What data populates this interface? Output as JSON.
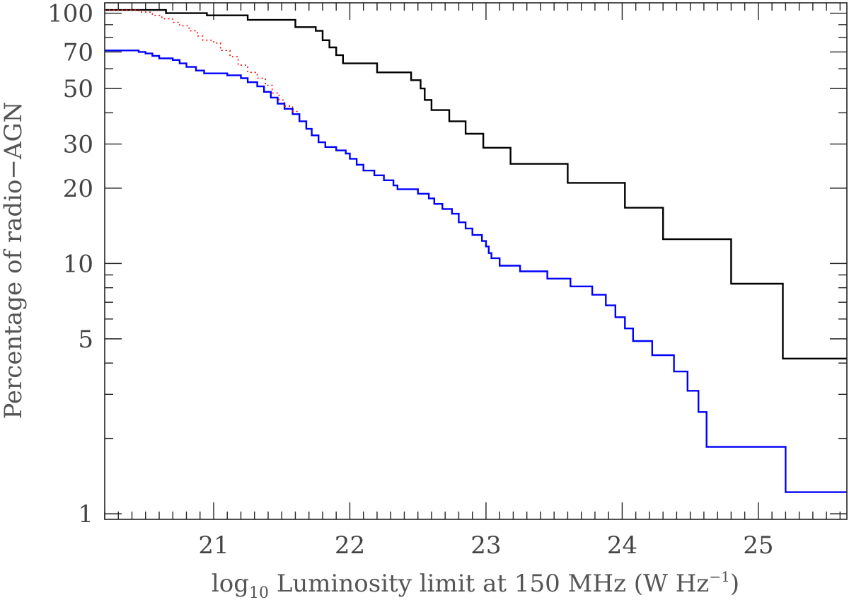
{
  "chart_data": {
    "type": "line",
    "step": true,
    "title": "",
    "xlabel": {
      "pre": "log",
      "sub": "10",
      "main": " Luminosity limit at 150 MHz (W Hz",
      "sup": "−1",
      "post": ")"
    },
    "ylabel": "Percentage of radio−AGN",
    "xlim": [
      20.2,
      25.65
    ],
    "ylim": [
      0.95,
      110
    ],
    "yscale": "log",
    "grid": false,
    "legend": "none",
    "x_ticks": [
      21,
      22,
      23,
      24,
      25
    ],
    "x_tick_labels": [
      "21",
      "22",
      "23",
      "24",
      "25"
    ],
    "y_ticks": [
      1,
      5,
      10,
      20,
      30,
      50,
      70,
      100
    ],
    "y_tick_labels": [
      "1",
      "5",
      "10",
      "20",
      "30",
      "50",
      "70",
      "100"
    ],
    "y_minor_ticks": [
      2,
      3,
      4,
      6,
      7,
      8,
      9,
      40,
      60,
      80,
      90
    ],
    "series": [
      {
        "color": "#000000",
        "style": "solid",
        "points": [
          [
            20.2,
            103
          ],
          [
            20.65,
            103
          ],
          [
            20.65,
            100
          ],
          [
            20.95,
            100
          ],
          [
            20.95,
            98
          ],
          [
            21.25,
            98
          ],
          [
            21.25,
            94
          ],
          [
            21.6,
            94
          ],
          [
            21.6,
            88
          ],
          [
            21.75,
            88
          ],
          [
            21.75,
            85
          ],
          [
            21.8,
            85
          ],
          [
            21.8,
            78
          ],
          [
            21.85,
            78
          ],
          [
            21.85,
            73
          ],
          [
            21.9,
            73
          ],
          [
            21.9,
            68
          ],
          [
            21.95,
            68
          ],
          [
            21.95,
            63
          ],
          [
            22.2,
            63
          ],
          [
            22.2,
            58
          ],
          [
            22.45,
            58
          ],
          [
            22.45,
            54
          ],
          [
            22.52,
            54
          ],
          [
            22.52,
            50
          ],
          [
            22.55,
            50
          ],
          [
            22.55,
            45
          ],
          [
            22.6,
            45
          ],
          [
            22.6,
            41
          ],
          [
            22.73,
            41
          ],
          [
            22.73,
            37
          ],
          [
            22.85,
            37
          ],
          [
            22.85,
            33
          ],
          [
            22.98,
            33
          ],
          [
            22.98,
            29
          ],
          [
            23.18,
            29
          ],
          [
            23.18,
            25
          ],
          [
            23.6,
            25
          ],
          [
            23.6,
            21
          ],
          [
            24.02,
            21
          ],
          [
            24.02,
            16.7
          ],
          [
            24.3,
            16.7
          ],
          [
            24.3,
            12.5
          ],
          [
            24.8,
            12.5
          ],
          [
            24.8,
            8.3
          ],
          [
            25.18,
            8.3
          ],
          [
            25.18,
            4.17
          ],
          [
            25.65,
            4.17
          ]
        ]
      },
      {
        "color": "#0000ff",
        "style": "solid",
        "points": [
          [
            20.2,
            71
          ],
          [
            20.45,
            71
          ],
          [
            20.45,
            70
          ],
          [
            20.5,
            70
          ],
          [
            20.5,
            69
          ],
          [
            20.55,
            69
          ],
          [
            20.55,
            67.5
          ],
          [
            20.6,
            67.5
          ],
          [
            20.6,
            66
          ],
          [
            20.7,
            66
          ],
          [
            20.7,
            65
          ],
          [
            20.75,
            65
          ],
          [
            20.75,
            63
          ],
          [
            20.8,
            63
          ],
          [
            20.8,
            61
          ],
          [
            20.87,
            61
          ],
          [
            20.87,
            59
          ],
          [
            20.93,
            59
          ],
          [
            20.93,
            57.5
          ],
          [
            21.1,
            57.5
          ],
          [
            21.1,
            56.5
          ],
          [
            21.2,
            56.5
          ],
          [
            21.2,
            55
          ],
          [
            21.25,
            55
          ],
          [
            21.25,
            53
          ],
          [
            21.32,
            53
          ],
          [
            21.32,
            51
          ],
          [
            21.37,
            51
          ],
          [
            21.37,
            48.5
          ],
          [
            21.42,
            48.5
          ],
          [
            21.42,
            46
          ],
          [
            21.47,
            46
          ],
          [
            21.47,
            43.5
          ],
          [
            21.52,
            43.5
          ],
          [
            21.52,
            41.5
          ],
          [
            21.58,
            41.5
          ],
          [
            21.58,
            39.5
          ],
          [
            21.63,
            39.5
          ],
          [
            21.63,
            37
          ],
          [
            21.68,
            37
          ],
          [
            21.68,
            34.5
          ],
          [
            21.72,
            34.5
          ],
          [
            21.72,
            32.5
          ],
          [
            21.77,
            32.5
          ],
          [
            21.77,
            30.5
          ],
          [
            21.82,
            30.5
          ],
          [
            21.82,
            29.2
          ],
          [
            21.9,
            29.2
          ],
          [
            21.9,
            28.3
          ],
          [
            21.97,
            28.3
          ],
          [
            21.97,
            27.5
          ],
          [
            22.0,
            27.5
          ],
          [
            22.0,
            26.2
          ],
          [
            22.05,
            26.2
          ],
          [
            22.05,
            24.8
          ],
          [
            22.1,
            24.8
          ],
          [
            22.1,
            23.5
          ],
          [
            22.18,
            23.5
          ],
          [
            22.18,
            22.5
          ],
          [
            22.25,
            22.5
          ],
          [
            22.25,
            21.5
          ],
          [
            22.32,
            21.5
          ],
          [
            22.32,
            20.5
          ],
          [
            22.35,
            20.5
          ],
          [
            22.35,
            19.8
          ],
          [
            22.5,
            19.8
          ],
          [
            22.5,
            19
          ],
          [
            22.58,
            19
          ],
          [
            22.58,
            18.2
          ],
          [
            22.62,
            18.2
          ],
          [
            22.62,
            17.3
          ],
          [
            22.68,
            17.3
          ],
          [
            22.68,
            16.5
          ],
          [
            22.75,
            16.5
          ],
          [
            22.75,
            15.8
          ],
          [
            22.8,
            15.8
          ],
          [
            22.8,
            14.6
          ],
          [
            22.85,
            14.6
          ],
          [
            22.85,
            13.8
          ],
          [
            22.9,
            13.8
          ],
          [
            22.9,
            13
          ],
          [
            22.97,
            13
          ],
          [
            22.97,
            12.3
          ],
          [
            23.0,
            12.3
          ],
          [
            23.0,
            11.7
          ],
          [
            23.02,
            11.7
          ],
          [
            23.02,
            11
          ],
          [
            23.04,
            11
          ],
          [
            23.04,
            10.5
          ],
          [
            23.1,
            10.5
          ],
          [
            23.1,
            9.8
          ],
          [
            23.25,
            9.8
          ],
          [
            23.25,
            9.3
          ],
          [
            23.45,
            9.3
          ],
          [
            23.45,
            8.7
          ],
          [
            23.62,
            8.7
          ],
          [
            23.62,
            8.1
          ],
          [
            23.78,
            8.1
          ],
          [
            23.78,
            7.5
          ],
          [
            23.88,
            7.5
          ],
          [
            23.88,
            6.8
          ],
          [
            23.95,
            6.8
          ],
          [
            23.95,
            6.1
          ],
          [
            24.02,
            6.1
          ],
          [
            24.02,
            5.5
          ],
          [
            24.08,
            5.5
          ],
          [
            24.08,
            4.9
          ],
          [
            24.22,
            4.9
          ],
          [
            24.22,
            4.3
          ],
          [
            24.38,
            4.3
          ],
          [
            24.38,
            3.7
          ],
          [
            24.48,
            3.7
          ],
          [
            24.48,
            3.1
          ],
          [
            24.56,
            3.1
          ],
          [
            24.56,
            2.55
          ],
          [
            24.62,
            2.55
          ],
          [
            24.62,
            1.85
          ],
          [
            25.2,
            1.85
          ],
          [
            25.2,
            1.22
          ],
          [
            25.65,
            1.22
          ]
        ]
      },
      {
        "color": "#ff0000",
        "style": "dotted",
        "points": [
          [
            20.2,
            103
          ],
          [
            20.45,
            103
          ],
          [
            20.45,
            101
          ],
          [
            20.55,
            101
          ],
          [
            20.55,
            98
          ],
          [
            20.62,
            98
          ],
          [
            20.62,
            95
          ],
          [
            20.7,
            95
          ],
          [
            20.7,
            92
          ],
          [
            20.75,
            92
          ],
          [
            20.75,
            89
          ],
          [
            20.82,
            89
          ],
          [
            20.82,
            85
          ],
          [
            20.88,
            85
          ],
          [
            20.88,
            81
          ],
          [
            20.92,
            81
          ],
          [
            20.92,
            78
          ],
          [
            21.0,
            78
          ],
          [
            21.0,
            76
          ],
          [
            21.05,
            76
          ],
          [
            21.05,
            71
          ],
          [
            21.12,
            71
          ],
          [
            21.12,
            67
          ],
          [
            21.18,
            67
          ],
          [
            21.18,
            62
          ],
          [
            21.25,
            62
          ],
          [
            21.25,
            58
          ],
          [
            21.32,
            58
          ],
          [
            21.32,
            55
          ],
          [
            21.38,
            55
          ],
          [
            21.38,
            51.5
          ],
          [
            21.43,
            51.5
          ],
          [
            21.43,
            48
          ],
          [
            21.48,
            48
          ],
          [
            21.48,
            45
          ],
          [
            21.52,
            45
          ],
          [
            21.52,
            42.5
          ],
          [
            21.58,
            42.5
          ],
          [
            21.58,
            40.5
          ],
          [
            21.62,
            40.5
          ]
        ]
      }
    ]
  }
}
